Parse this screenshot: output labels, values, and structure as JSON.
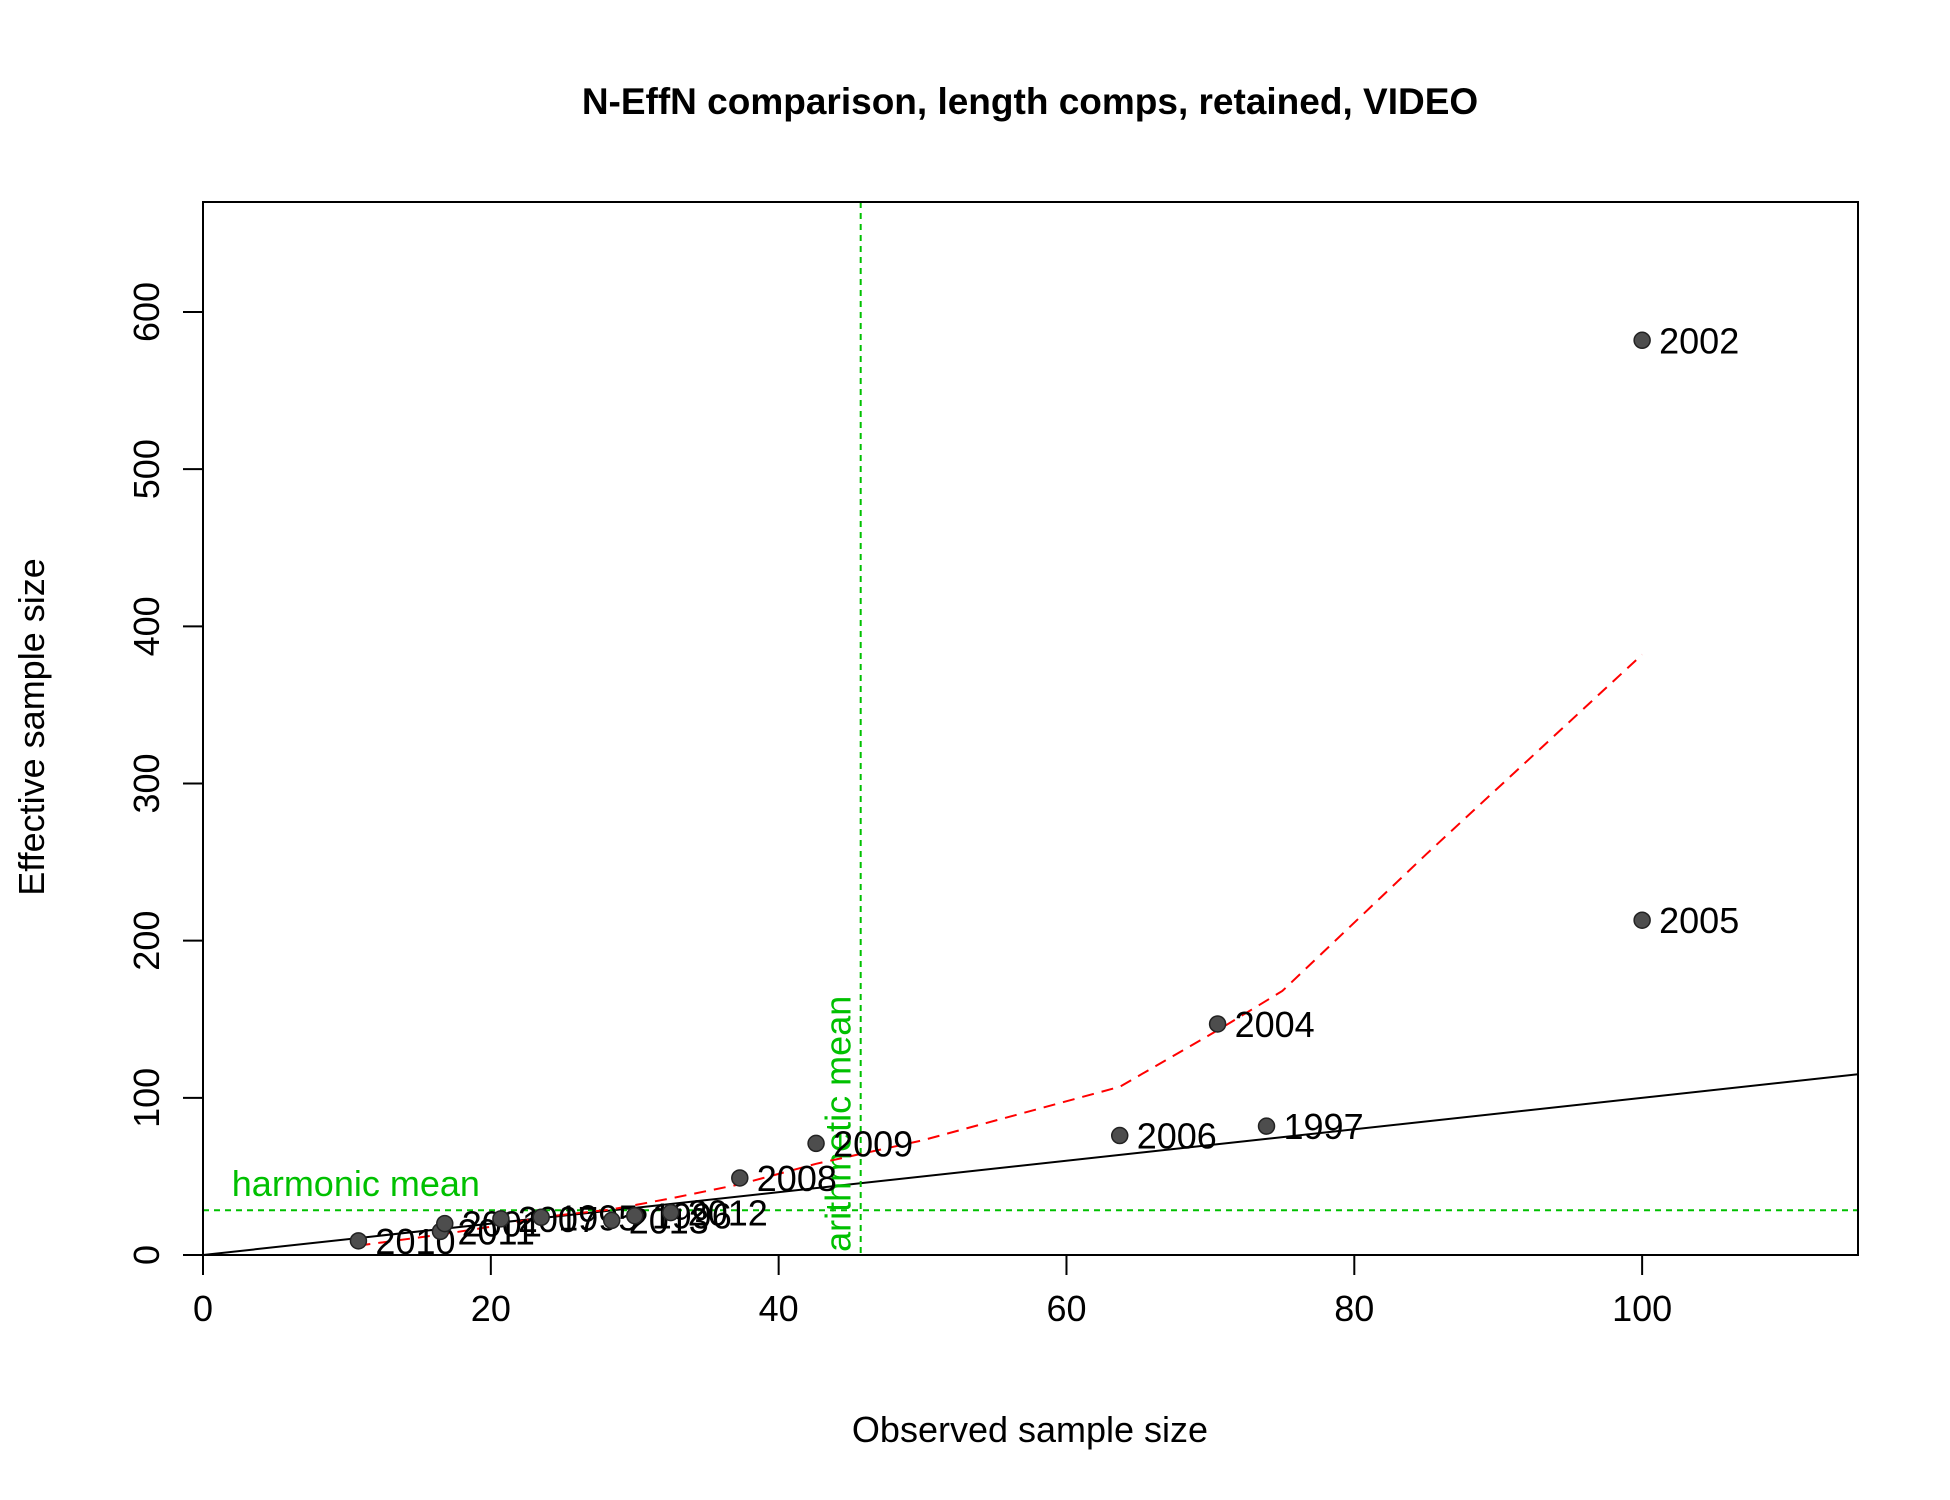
{
  "chart_data": {
    "type": "scatter",
    "title": "N-EffN comparison, length comps, retained, VIDEO",
    "xlabel": "Observed sample size",
    "ylabel": "Effective sample size",
    "xlim": [
      0,
      115
    ],
    "ylim": [
      0,
      670
    ],
    "x_ticks": [
      0,
      20,
      40,
      60,
      80,
      100
    ],
    "y_ticks": [
      0,
      100,
      200,
      300,
      400,
      500,
      600
    ],
    "points": [
      {
        "label": "2010",
        "x": 10.8,
        "y": 9
      },
      {
        "label": "2011",
        "x": 16.5,
        "y": 15
      },
      {
        "label": "2001",
        "x": 16.8,
        "y": 20
      },
      {
        "label": "2007",
        "x": 20.7,
        "y": 23
      },
      {
        "label": "1995",
        "x": 23.5,
        "y": 24
      },
      {
        "label": "2013",
        "x": 28.4,
        "y": 22
      },
      {
        "label": "1996",
        "x": 30.0,
        "y": 25
      },
      {
        "label": "2012",
        "x": 32.5,
        "y": 27
      },
      {
        "label": "2008",
        "x": 37.3,
        "y": 49
      },
      {
        "label": "2009",
        "x": 42.6,
        "y": 71
      },
      {
        "label": "2006",
        "x": 63.7,
        "y": 76
      },
      {
        "label": "2004",
        "x": 70.5,
        "y": 147
      },
      {
        "label": "1997",
        "x": 73.9,
        "y": 82
      },
      {
        "label": "2002",
        "x": 100,
        "y": 582
      },
      {
        "label": "2005",
        "x": 100,
        "y": 213
      }
    ],
    "point_color": "#4d4d4d",
    "one_to_one_line": {
      "color": "#000000"
    },
    "loess_line": {
      "color": "#ff0000",
      "style": "dashed",
      "x": [
        10.8,
        16.5,
        20.7,
        23.5,
        28.4,
        32.5,
        37.3,
        42.6,
        50,
        63.7,
        70.5,
        75,
        85,
        100
      ],
      "y": [
        6,
        13,
        19,
        24,
        29,
        36,
        45,
        58,
        73,
        107,
        143,
        168,
        255,
        382
      ]
    },
    "harmonic_mean": {
      "label": "harmonic mean",
      "value": 28.5,
      "color": "#00c000"
    },
    "arithmetic_mean": {
      "label": "arithmetic mean",
      "value": 45.7,
      "color": "#00c000"
    }
  }
}
